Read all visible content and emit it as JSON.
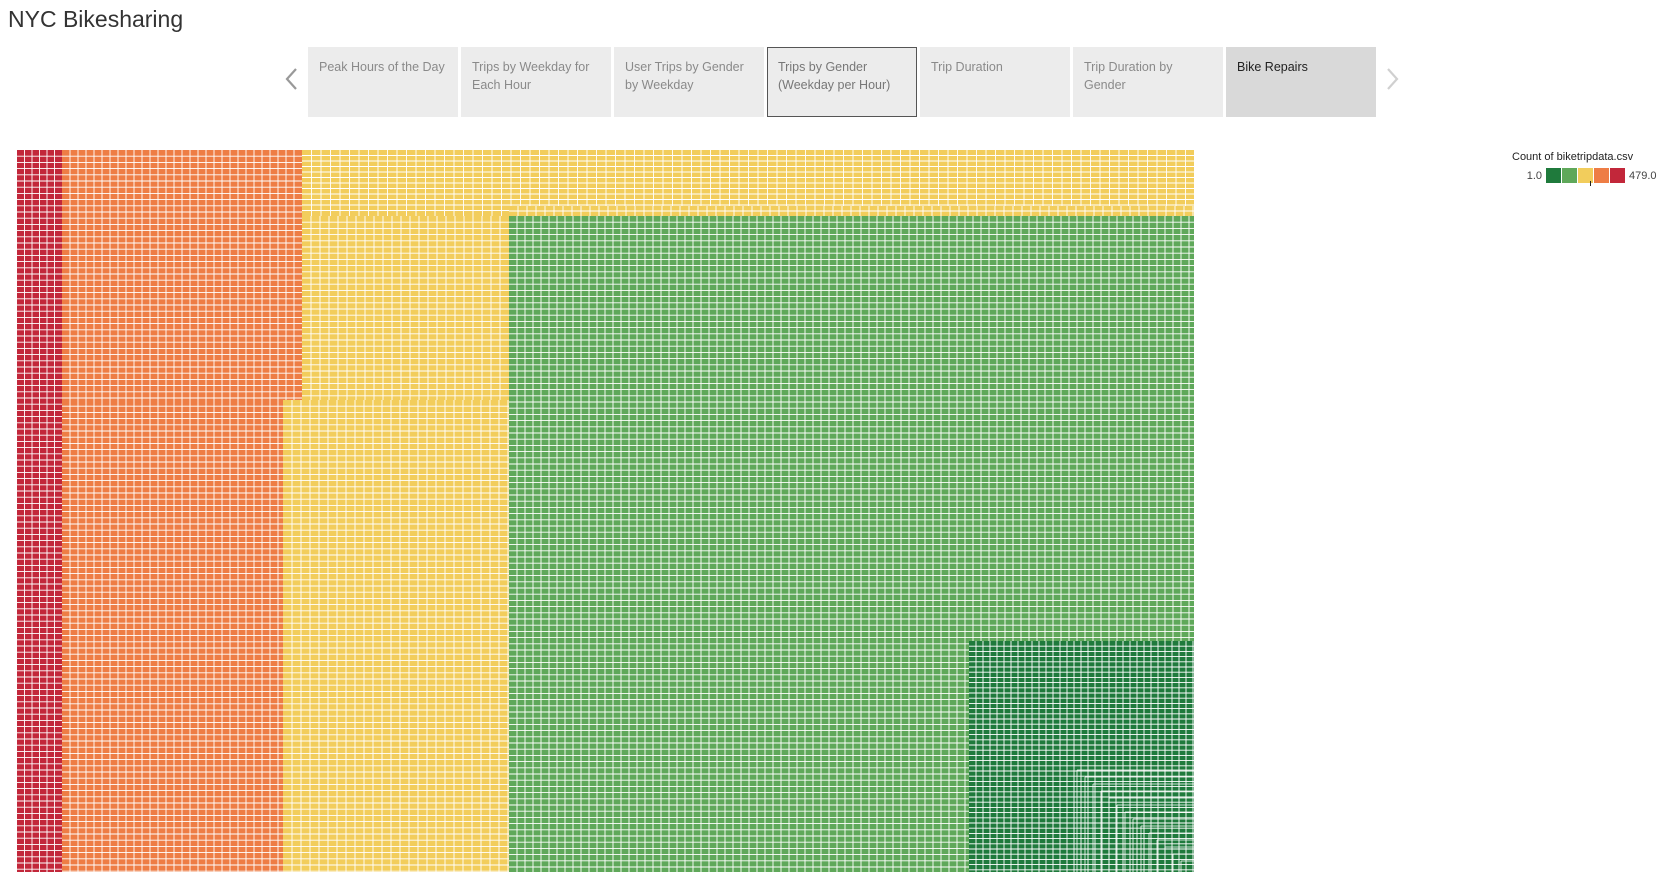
{
  "header": {
    "title": "NYC Bikesharing"
  },
  "nav": {
    "prev_icon": "chevron-left-icon",
    "next_icon": "chevron-right-icon"
  },
  "tabs": [
    {
      "label": "Peak Hours of the Day",
      "state": "normal"
    },
    {
      "label": "Trips by Weekday for Each Hour",
      "state": "normal"
    },
    {
      "label": "User Trips by Gender by Weekday",
      "state": "normal"
    },
    {
      "label": "Trips by Gender (Weekday per Hour)",
      "state": "selected"
    },
    {
      "label": "Trip Duration",
      "state": "normal"
    },
    {
      "label": "Trip Duration by Gender",
      "state": "normal"
    },
    {
      "label": "Bike Repairs",
      "state": "current"
    }
  ],
  "legend": {
    "title": "Count of biketripdata.csv",
    "min_label": "1.0",
    "max_label": "479.0",
    "colors": [
      "#1f7a3c",
      "#5fa85a",
      "#f2cd5c",
      "#ee7d45",
      "#c2273a"
    ]
  },
  "chart_data": {
    "type": "heatmap",
    "title": "",
    "color_field": "Count of biketripdata.csv",
    "color_range": [
      1.0,
      479.0
    ],
    "palette": [
      "#1f7a3c",
      "#5fa85a",
      "#f2cd5c",
      "#ee7d45",
      "#c2273a"
    ]
  }
}
